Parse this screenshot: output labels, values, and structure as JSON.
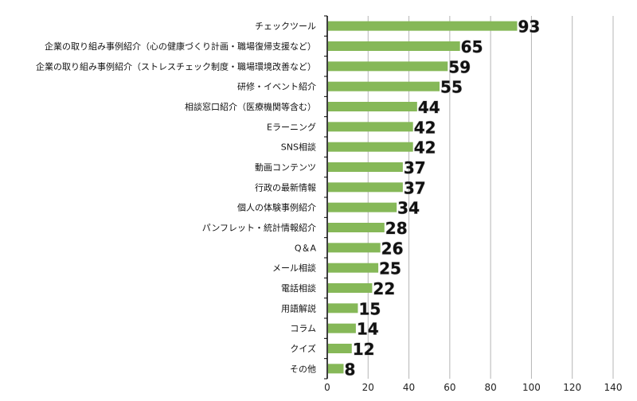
{
  "chart_data": {
    "type": "bar",
    "orientation": "horizontal",
    "categories": [
      "チェックツール",
      "企業の取り組み事例紹介（心の健康づくり計画・職場復帰支援など）",
      "企業の取り組み事例紹介（ストレスチェック制度・職場環境改善など）",
      "研修・イベント紹介",
      "相談窓口紹介（医療機関等含む）",
      "Eラーニング",
      "SNS相談",
      "動画コンテンツ",
      "行政の最新情報",
      "個人の体験事例紹介",
      "パンフレット・統計情報紹介",
      "Q＆A",
      "メール相談",
      "電話相談",
      "用語解説",
      "コラム",
      "クイズ",
      "その他"
    ],
    "values": [
      93,
      65,
      59,
      55,
      44,
      42,
      42,
      37,
      37,
      34,
      28,
      26,
      25,
      22,
      15,
      14,
      12,
      8
    ],
    "xlim": [
      0,
      140
    ],
    "xticks": [
      "0",
      "20",
      "40",
      "60",
      "80",
      "100",
      "120",
      "140"
    ],
    "grid": "vertical",
    "bar_color": "#86b858",
    "data_labels": true,
    "title": "",
    "xlabel": "",
    "ylabel": ""
  }
}
